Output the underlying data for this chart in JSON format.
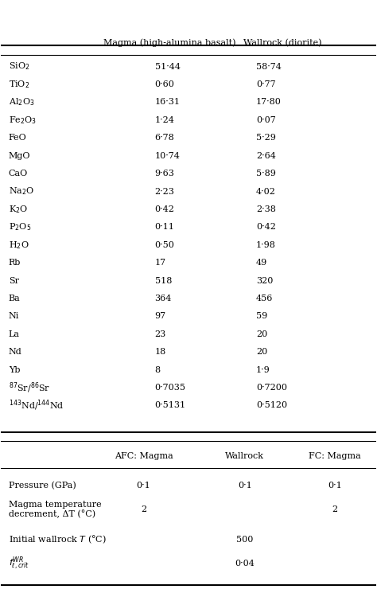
{
  "header1": [
    "",
    "Magma (high-alumina basalt)",
    "Wallrock (diorite)"
  ],
  "rows1": [
    [
      "SiO$_2$",
      "51·44",
      "58·74"
    ],
    [
      "TiO$_2$",
      "0·60",
      "0·77"
    ],
    [
      "Al$_2$O$_3$",
      "16·31",
      "17·80"
    ],
    [
      "Fe$_2$O$_3$",
      "1·24",
      "0·07"
    ],
    [
      "FeO",
      "6·78",
      "5·29"
    ],
    [
      "MgO",
      "10·74",
      "2·64"
    ],
    [
      "CaO",
      "9·63",
      "5·89"
    ],
    [
      "Na$_2$O",
      "2·23",
      "4·02"
    ],
    [
      "K$_2$O",
      "0·42",
      "2·38"
    ],
    [
      "P$_2$O$_5$",
      "0·11",
      "0·42"
    ],
    [
      "H$_2$O",
      "0·50",
      "1·98"
    ],
    [
      "Rb",
      "17",
      "49"
    ],
    [
      "Sr",
      "518",
      "320"
    ],
    [
      "Ba",
      "364",
      "456"
    ],
    [
      "Ni",
      "97",
      "59"
    ],
    [
      "La",
      "23",
      "20"
    ],
    [
      "Nd",
      "18",
      "20"
    ],
    [
      "Yb",
      "8",
      "1·9"
    ],
    [
      "$^{87}$Sr/$^{86}$Sr",
      "0·7035",
      "0·7200"
    ],
    [
      "$^{143}$Nd/$^{144}$Nd",
      "0·5131",
      "0·5120"
    ]
  ],
  "header2": [
    "",
    "AFC: Magma",
    "Wallrock",
    "FC: Magma"
  ],
  "rows2": [
    [
      "Pressure (GPa)",
      "0·1",
      "0·1",
      "0·1"
    ],
    [
      "Magma temperature\ndecrement, ΔT (°C)",
      "2",
      "",
      "2"
    ],
    [
      "Initial wallrock T (°C)",
      "",
      "500",
      ""
    ],
    [
      "$f^{WR}_{\\ell,crit}$",
      "",
      "0·04",
      ""
    ]
  ],
  "bg_color": "#ffffff",
  "text_color": "#000000",
  "line_color": "#000000"
}
